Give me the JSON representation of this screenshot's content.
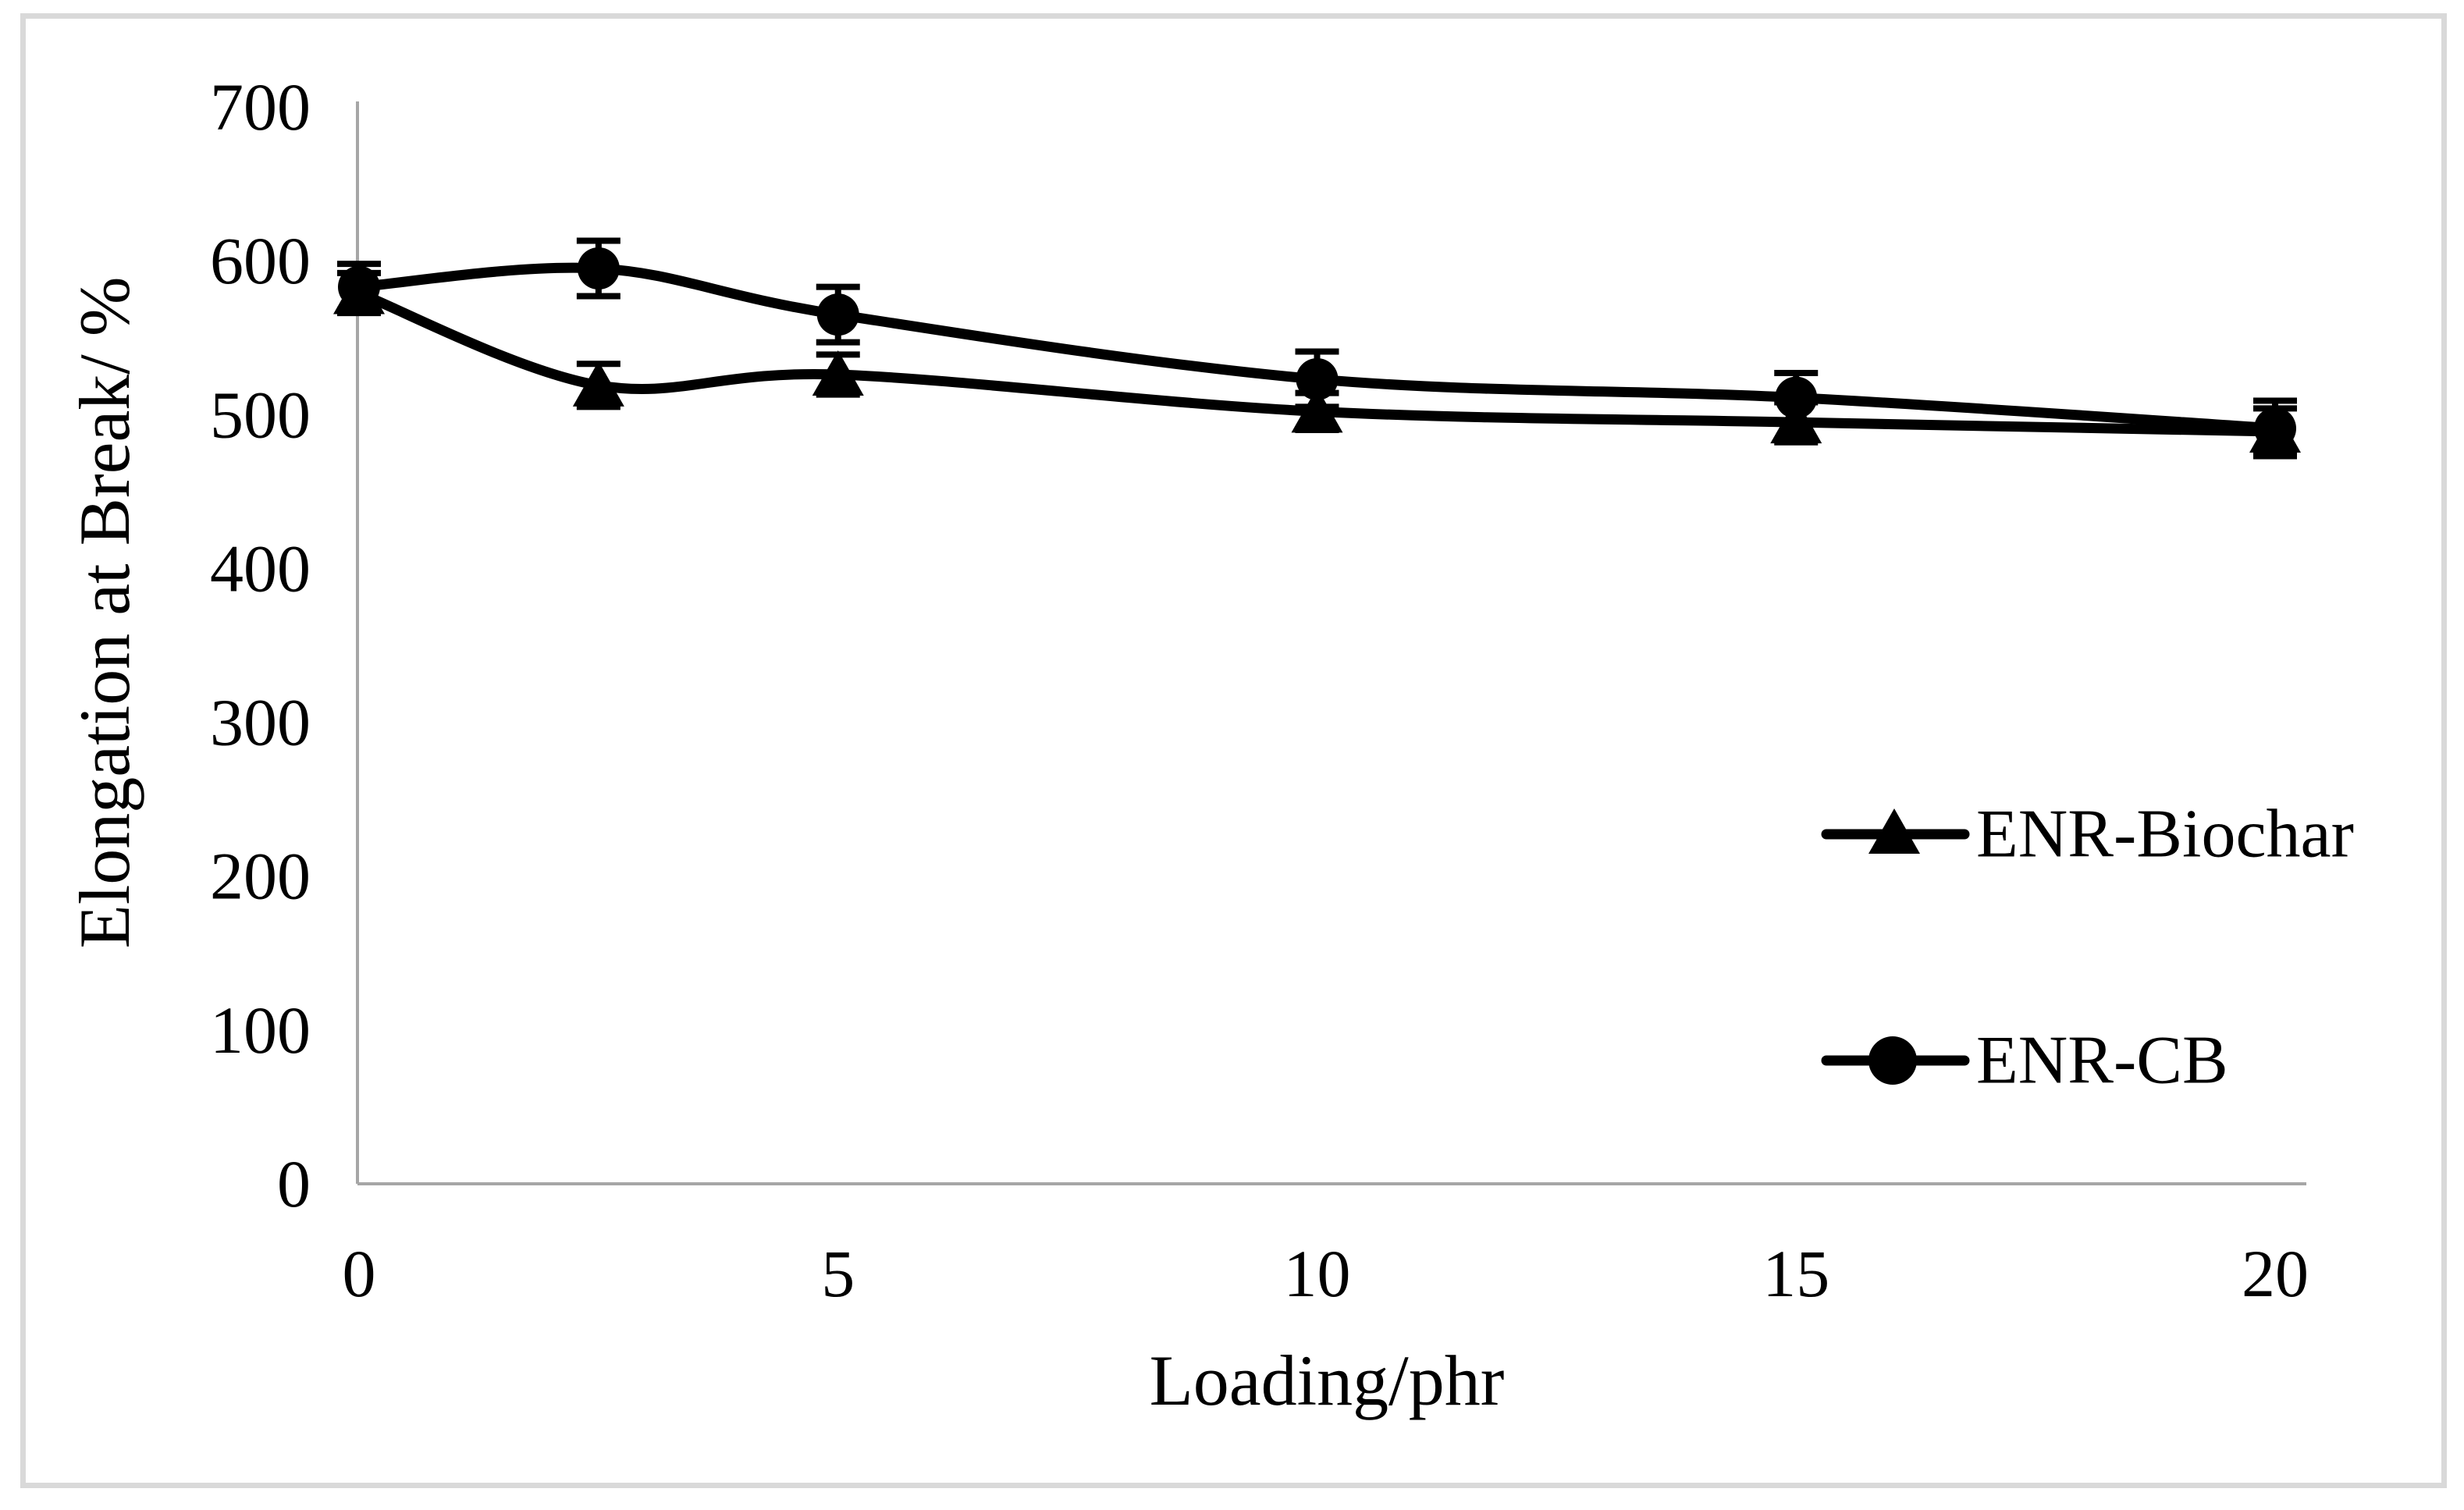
{
  "chart_data": {
    "type": "line",
    "title": "",
    "xlabel": "Loading/phr",
    "ylabel": "Elongation at Break/ %",
    "xlim": [
      0,
      20
    ],
    "ylim": [
      0,
      700
    ],
    "x_tick_labels": [
      "0",
      "5",
      "10",
      "15",
      "20"
    ],
    "x_tick_values": [
      0,
      5,
      10,
      15,
      20
    ],
    "y_tick_labels": [
      "0",
      "100",
      "200",
      "300",
      "400",
      "500",
      "600",
      "700"
    ],
    "y_tick_values": [
      0,
      100,
      200,
      300,
      400,
      500,
      600,
      700
    ],
    "grid": false,
    "smoothed_lines": true,
    "error_bars": true,
    "legend_position": "middle-right",
    "x": [
      0,
      2.5,
      5,
      10,
      15,
      20
    ],
    "series": [
      {
        "name": "ENR-Biochar",
        "marker": "triangle",
        "color": "#000000",
        "values": [
          579,
          519,
          526,
          502,
          495,
          489
        ],
        "error": [
          13,
          14,
          13,
          12,
          13,
          15
        ]
      },
      {
        "name": "ENR-CB",
        "marker": "circle",
        "color": "#000000",
        "values": [
          583,
          595,
          565,
          523,
          511,
          491
        ],
        "error": [
          15,
          18,
          18,
          18,
          16,
          18
        ]
      }
    ]
  },
  "style": {
    "background": "#ffffff",
    "frame_border_color": "#d9d9d9",
    "axis_color": "#a6a6a6",
    "series_color": "#000000"
  }
}
